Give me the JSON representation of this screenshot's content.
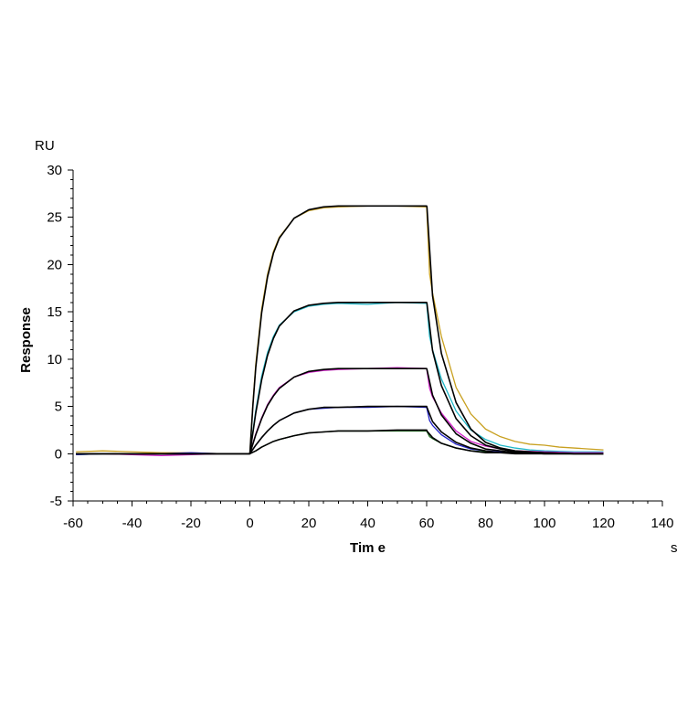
{
  "chart_data": {
    "type": "line",
    "title": "",
    "xlabel": "Tim e",
    "ylabel": "Response",
    "x_unit": "s",
    "y_unit": "RU",
    "xlim": [
      -60,
      140
    ],
    "ylim": [
      -5,
      30
    ],
    "x_ticks": [
      -60,
      -40,
      -20,
      0,
      20,
      40,
      60,
      80,
      100,
      120,
      140
    ],
    "y_ticks": [
      -5,
      0,
      5,
      10,
      15,
      20,
      25,
      30
    ],
    "x_tick_labels": [
      "-60",
      "-40",
      "-20",
      "0",
      "20",
      "40",
      "60",
      "80",
      "100",
      "120",
      "140"
    ],
    "y_tick_labels": [
      "-5",
      "0",
      "5",
      "10",
      "15",
      "20",
      "25",
      "30"
    ],
    "grid": false,
    "legend": "none",
    "association_start": 0,
    "dissociation_start": 60,
    "end_time": 120,
    "series": [
      {
        "color": "#c8a020",
        "x": [
          -59,
          -50,
          -40,
          -30,
          -20,
          -10,
          0,
          1,
          2,
          4,
          6,
          8,
          10,
          15,
          20,
          25,
          30,
          40,
          50,
          60,
          61,
          62,
          65,
          70,
          75,
          80,
          85,
          90,
          95,
          100,
          105,
          110,
          115,
          120
        ],
        "y": [
          0.2,
          0.3,
          0.2,
          0.1,
          0.1,
          0.0,
          0.0,
          5.2,
          9.5,
          15.3,
          19.0,
          21.4,
          22.9,
          24.9,
          25.7,
          26.0,
          26.1,
          26.2,
          26.2,
          26.1,
          19.0,
          17.0,
          12.4,
          7.0,
          4.2,
          2.6,
          1.8,
          1.3,
          1.0,
          0.9,
          0.7,
          0.6,
          0.5,
          0.4
        ]
      },
      {
        "color": "#20b8c8",
        "x": [
          -59,
          -50,
          -40,
          -30,
          -20,
          -10,
          0,
          2,
          4,
          6,
          8,
          10,
          15,
          20,
          25,
          30,
          40,
          50,
          60,
          61,
          62,
          65,
          70,
          75,
          80,
          85,
          90,
          95,
          100,
          110,
          120
        ],
        "y": [
          -0.1,
          0.0,
          0.0,
          0.0,
          0.0,
          0.0,
          0.0,
          4.6,
          8.2,
          10.7,
          12.4,
          13.6,
          15.0,
          15.6,
          15.8,
          15.9,
          15.8,
          16.0,
          15.9,
          12.4,
          11.0,
          7.9,
          4.5,
          2.5,
          1.5,
          0.9,
          0.6,
          0.4,
          0.3,
          0.2,
          0.2
        ]
      },
      {
        "color": "#d020c8",
        "x": [
          -59,
          -50,
          -40,
          -30,
          -20,
          -10,
          0,
          2,
          4,
          6,
          8,
          10,
          15,
          20,
          25,
          30,
          40,
          50,
          60,
          61,
          62,
          65,
          70,
          75,
          80,
          85,
          90,
          100,
          110,
          120
        ],
        "y": [
          0.0,
          0.0,
          -0.1,
          -0.2,
          -0.1,
          0.0,
          0.0,
          2.1,
          3.8,
          5.2,
          6.2,
          7.0,
          8.1,
          8.6,
          8.8,
          8.9,
          9.0,
          9.1,
          9.0,
          6.9,
          6.0,
          4.3,
          2.4,
          1.3,
          0.8,
          0.5,
          0.3,
          0.2,
          0.1,
          0.1
        ]
      },
      {
        "color": "#2020c8",
        "x": [
          -59,
          -50,
          -40,
          -30,
          -20,
          -10,
          0,
          2,
          4,
          6,
          8,
          10,
          15,
          20,
          25,
          30,
          40,
          50,
          60,
          61,
          62,
          65,
          70,
          75,
          80,
          85,
          90,
          100,
          110,
          120
        ],
        "y": [
          -0.1,
          0.0,
          0.0,
          0.0,
          0.1,
          0.0,
          0.0,
          0.9,
          1.7,
          2.4,
          3.0,
          3.5,
          4.3,
          4.7,
          4.8,
          4.9,
          4.9,
          5.0,
          4.9,
          3.5,
          3.0,
          2.0,
          1.0,
          0.5,
          0.3,
          0.2,
          0.1,
          0.0,
          0.0,
          0.0
        ]
      },
      {
        "color": "#207020",
        "x": [
          -59,
          -50,
          -40,
          -30,
          -20,
          -10,
          0,
          2,
          4,
          6,
          8,
          10,
          15,
          20,
          25,
          30,
          40,
          50,
          60,
          61,
          62,
          65,
          70,
          75,
          80,
          85,
          90,
          100,
          110,
          120
        ],
        "y": [
          0.0,
          0.0,
          0.0,
          0.0,
          0.0,
          0.0,
          0.0,
          0.3,
          0.7,
          1.0,
          1.3,
          1.5,
          1.9,
          2.2,
          2.3,
          2.4,
          2.4,
          2.4,
          2.4,
          1.8,
          1.6,
          1.1,
          0.6,
          0.3,
          0.2,
          0.1,
          0.1,
          0.0,
          0.0,
          0.0
        ]
      }
    ],
    "fit_curves": [
      {
        "x": [
          -59,
          0,
          1,
          2,
          4,
          6,
          8,
          10,
          15,
          20,
          25,
          30,
          40,
          50,
          60,
          60.1,
          62,
          65,
          70,
          75,
          80,
          85,
          90,
          100,
          110,
          120
        ],
        "y": [
          0.0,
          0.0,
          5.0,
          9.1,
          14.9,
          18.7,
          21.2,
          22.8,
          24.9,
          25.8,
          26.1,
          26.2,
          26.2,
          26.2,
          26.2,
          26.1,
          16.7,
          10.6,
          5.4,
          2.6,
          1.2,
          0.6,
          0.3,
          0.1,
          0.0,
          0.0
        ]
      },
      {
        "x": [
          -59,
          0,
          2,
          4,
          6,
          8,
          10,
          15,
          20,
          25,
          30,
          40,
          50,
          60,
          60.1,
          62,
          65,
          70,
          75,
          80,
          85,
          90,
          100,
          110,
          120
        ],
        "y": [
          0.0,
          0.0,
          4.3,
          7.8,
          10.4,
          12.2,
          13.5,
          15.1,
          15.7,
          15.9,
          16.0,
          16.0,
          16.0,
          16.0,
          15.9,
          10.9,
          7.2,
          3.7,
          1.9,
          0.9,
          0.5,
          0.2,
          0.1,
          0.0,
          0.0
        ]
      },
      {
        "x": [
          -59,
          0,
          2,
          4,
          6,
          8,
          10,
          15,
          20,
          25,
          30,
          40,
          50,
          60,
          60.1,
          62,
          65,
          70,
          75,
          80,
          85,
          90,
          100,
          110,
          120
        ],
        "y": [
          0.0,
          0.0,
          2.0,
          3.7,
          5.1,
          6.1,
          6.9,
          8.1,
          8.7,
          8.9,
          9.0,
          9.0,
          9.0,
          9.0,
          8.9,
          6.2,
          4.1,
          2.1,
          1.1,
          0.5,
          0.3,
          0.1,
          0.0,
          0.0,
          0.0
        ]
      },
      {
        "x": [
          -59,
          0,
          2,
          4,
          6,
          8,
          10,
          15,
          20,
          25,
          30,
          40,
          50,
          60,
          60.1,
          62,
          65,
          70,
          75,
          80,
          85,
          90,
          100,
          110,
          120
        ],
        "y": [
          0.0,
          0.0,
          0.9,
          1.7,
          2.4,
          3.0,
          3.5,
          4.3,
          4.7,
          4.9,
          4.9,
          5.0,
          5.0,
          5.0,
          4.9,
          3.4,
          2.3,
          1.2,
          0.6,
          0.3,
          0.1,
          0.1,
          0.0,
          0.0,
          0.0
        ]
      },
      {
        "x": [
          -59,
          0,
          2,
          4,
          6,
          8,
          10,
          15,
          20,
          25,
          30,
          40,
          50,
          60,
          60.1,
          62,
          65,
          70,
          75,
          80,
          85,
          90,
          100,
          110,
          120
        ],
        "y": [
          0.0,
          0.0,
          0.3,
          0.7,
          1.0,
          1.3,
          1.5,
          1.9,
          2.2,
          2.3,
          2.4,
          2.4,
          2.5,
          2.5,
          2.4,
          1.7,
          1.1,
          0.6,
          0.3,
          0.1,
          0.1,
          0.0,
          0.0,
          0.0,
          0.0
        ]
      }
    ]
  }
}
